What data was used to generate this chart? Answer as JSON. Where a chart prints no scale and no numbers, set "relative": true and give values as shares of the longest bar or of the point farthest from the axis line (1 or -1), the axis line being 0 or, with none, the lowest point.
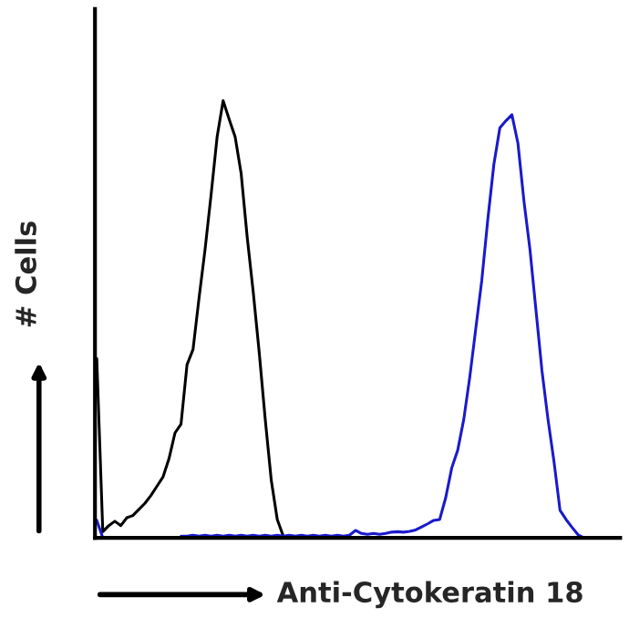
{
  "chart_data": {
    "type": "line",
    "xlabel": "Anti-Cytokeratin 18",
    "ylabel": "# Cells",
    "relative": true,
    "legend": false,
    "marker": "none",
    "line_style": "solid",
    "categories": [
      null,
      null,
      null,
      null,
      null,
      null,
      null,
      null,
      null,
      null,
      null,
      null,
      null,
      null,
      null,
      null,
      null,
      null,
      null,
      null,
      null,
      null,
      null,
      null,
      null,
      null,
      null,
      null,
      null,
      null,
      null,
      null,
      null,
      null,
      null,
      null,
      null,
      null,
      null,
      null,
      null,
      null,
      null,
      null,
      null,
      null,
      null,
      null,
      null,
      null,
      null,
      null,
      null,
      null,
      null,
      null,
      null,
      null,
      null,
      null,
      null,
      null,
      null,
      null,
      null,
      null,
      null,
      null,
      null,
      null,
      null,
      null,
      null,
      null,
      null,
      null,
      null,
      null,
      null,
      null,
      null,
      null,
      null,
      null,
      null,
      null,
      null
    ],
    "series": [
      {
        "color": "#000000",
        "values": [
          0.41,
          0.014,
          0.028,
          0.038,
          0.028,
          0.046,
          0.051,
          0.065,
          0.079,
          0.097,
          0.118,
          0.139,
          0.181,
          0.24,
          0.26,
          0.396,
          0.431,
          0.549,
          0.66,
          0.785,
          0.917,
          1.0,
          0.958,
          0.917,
          0.833,
          0.688,
          0.563,
          0.424,
          0.271,
          0.132,
          0.042,
          0.004,
          0,
          0,
          0,
          0,
          0,
          0,
          0,
          0,
          0,
          0,
          0,
          0,
          0,
          0,
          0,
          0,
          0,
          0,
          0,
          0,
          0,
          0,
          0,
          0,
          0,
          0,
          0,
          0,
          0,
          0,
          0,
          0,
          0,
          0,
          0,
          0,
          0,
          0,
          0,
          0,
          0,
          0,
          0,
          0,
          0,
          0,
          0,
          0,
          0,
          0,
          0,
          0,
          0,
          0,
          0
        ]
      },
      {
        "color": "#1a1acc",
        "values": [
          0.04,
          0,
          null,
          null,
          null,
          null,
          null,
          null,
          null,
          null,
          null,
          null,
          null,
          null,
          0.004,
          0.004,
          0.006,
          0.004,
          0.006,
          0.004,
          0.006,
          0.004,
          0.006,
          0.004,
          0.006,
          0.004,
          0.006,
          0.004,
          0.006,
          0.004,
          0.006,
          0.004,
          0.006,
          0.004,
          0.006,
          0.004,
          0.006,
          0.004,
          0.006,
          0.004,
          0.006,
          0.004,
          0.006,
          0.017,
          0.01,
          0.008,
          0.01,
          0.008,
          0.01,
          0.013,
          0.014,
          0.013,
          0.015,
          0.018,
          0.025,
          0.032,
          0.04,
          0.042,
          0.092,
          0.16,
          0.201,
          0.271,
          0.368,
          0.479,
          0.59,
          0.729,
          0.854,
          0.938,
          0.954,
          0.968,
          0.903,
          0.771,
          0.66,
          0.521,
          0.382,
          0.271,
          0.174,
          0.063,
          0.042,
          0.024,
          0.007,
          0,
          null,
          null,
          null,
          null,
          null
        ]
      }
    ]
  }
}
